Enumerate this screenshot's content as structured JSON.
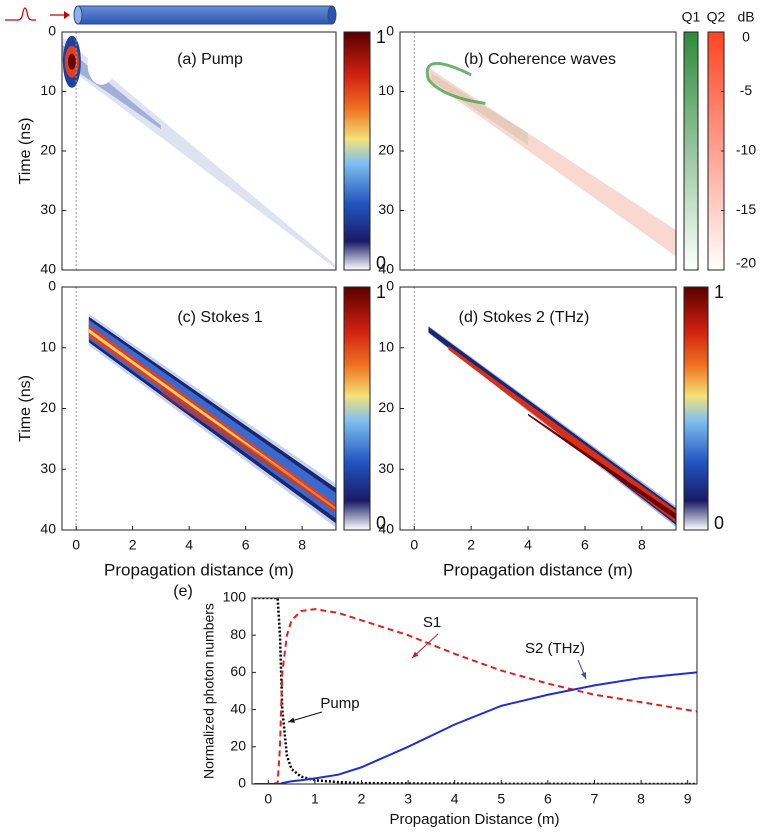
{
  "chart_data": [
    {
      "type": "heatmap",
      "title": "(a) Pump",
      "ylabel": "Time (ns)",
      "xlim": [
        -0.5,
        9.2
      ],
      "ylim": [
        0,
        40
      ],
      "yticks": [
        0,
        10,
        20,
        30,
        40
      ],
      "colorbar": {
        "lim": [
          0,
          1
        ],
        "ticks": [
          0,
          1
        ]
      }
    },
    {
      "type": "heatmap",
      "title": "(b) Coherence waves",
      "xlim": [
        -0.5,
        9.2
      ],
      "ylim": [
        0,
        40
      ],
      "yticks": [
        0,
        10,
        20,
        30,
        40
      ],
      "colorbars": [
        {
          "label": "Q1",
          "color": "#2e8b3a"
        },
        {
          "label": "Q2",
          "color": "#ff4422"
        }
      ],
      "colorbar": {
        "unit": "dB",
        "lim": [
          -20,
          0
        ],
        "ticks": [
          0,
          -5,
          -10,
          -15,
          -20
        ]
      }
    },
    {
      "type": "heatmap",
      "title": "(c) Stokes 1",
      "ylabel": "Time (ns)",
      "xlabel": "Propagation distance (m)",
      "xlim": [
        -0.5,
        9.2
      ],
      "xticks": [
        0,
        2,
        4,
        6,
        8
      ],
      "ylim": [
        0,
        40
      ],
      "yticks": [
        0,
        10,
        20,
        30,
        40
      ],
      "colorbar": {
        "lim": [
          0,
          1
        ],
        "ticks": [
          0,
          1
        ]
      }
    },
    {
      "type": "heatmap",
      "title": "(d) Stokes 2 (THz)",
      "xlabel": "Propagation distance (m)",
      "xlim": [
        -0.5,
        9.2
      ],
      "xticks": [
        0,
        2,
        4,
        6,
        8
      ],
      "ylim": [
        0,
        40
      ],
      "yticks": [
        0,
        10,
        20,
        30,
        40
      ],
      "colorbar": {
        "lim": [
          0,
          1
        ],
        "ticks": [
          0,
          1
        ]
      }
    },
    {
      "type": "line",
      "title": "(e)",
      "xlabel": "Propagation Distance (m)",
      "ylabel": "Normalized photon numbers",
      "xlim": [
        -0.35,
        9.2
      ],
      "xticks": [
        0,
        1,
        2,
        3,
        4,
        5,
        6,
        7,
        8,
        9
      ],
      "ylim": [
        0,
        100
      ],
      "yticks": [
        0,
        20,
        40,
        60,
        80,
        100
      ],
      "x": [
        -0.3,
        0,
        0.2,
        0.25,
        0.3,
        0.4,
        0.5,
        0.7,
        1,
        1.5,
        2,
        3,
        4,
        5,
        6,
        7,
        8,
        9.2
      ],
      "series": [
        {
          "name": "Pump",
          "color": "#000000",
          "style": "dotted",
          "values": [
            100,
            100,
            100,
            80,
            40,
            15,
            8,
            4,
            2,
            1,
            0.5,
            0.3,
            0.2,
            0.1,
            0.1,
            0,
            0,
            0
          ]
        },
        {
          "name": "S1",
          "color": "#e02020",
          "style": "dashed",
          "values": [
            0,
            0,
            0.5,
            20,
            60,
            80,
            88,
            93,
            94,
            92,
            88,
            80,
            70,
            61,
            54,
            48,
            44,
            39
          ]
        },
        {
          "name": "S2 (THz)",
          "color": "#1f2fd0",
          "style": "solid",
          "values": [
            0,
            0,
            0,
            0,
            0.5,
            1,
            1.5,
            2,
            3,
            5,
            9,
            20,
            32,
            42,
            48,
            53,
            57,
            60
          ]
        }
      ]
    }
  ]
}
